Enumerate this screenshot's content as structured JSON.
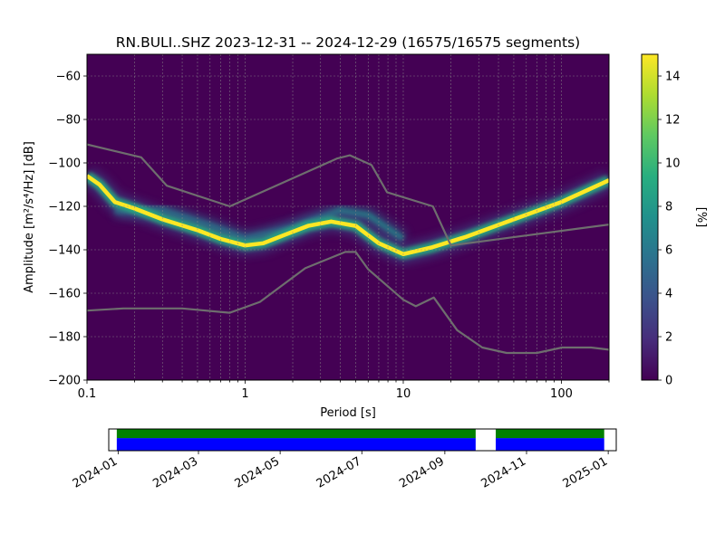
{
  "figure": {
    "title": "RN.BULI..SHZ   2023-12-31 -- 2024-12-29  (16575/16575 segments)"
  },
  "chart_data": [
    {
      "type": "heatmap",
      "title": "RN.BULI..SHZ   2023-12-31 -- 2024-12-29  (16575/16575 segments)",
      "xlabel": "Period [s]",
      "ylabel": "Amplitude [m²/s⁴/Hz] [dB]",
      "x_scale": "log",
      "xlim": [
        0.1,
        200
      ],
      "ylim": [
        -200,
        -50
      ],
      "x_ticks": [
        0.1,
        1,
        10,
        100
      ],
      "x_tick_labels": [
        "0.1",
        "1",
        "10",
        "100"
      ],
      "y_ticks": [
        -200,
        -180,
        -160,
        -140,
        -120,
        -100,
        -80,
        -60
      ],
      "grid": true,
      "colorbar": {
        "label": "[%]",
        "min": 0,
        "max": 15,
        "ticks": [
          0,
          2,
          4,
          6,
          8,
          10,
          12,
          14
        ],
        "colormap": "viridis"
      },
      "ridge": {
        "description": "most frequent PSD values (yellow ridge)",
        "period": [
          0.1,
          0.12,
          0.15,
          0.2,
          0.3,
          0.5,
          0.7,
          1.0,
          1.3,
          1.8,
          2.5,
          3.5,
          5,
          7,
          10,
          15,
          25,
          50,
          100,
          200
        ],
        "amplitude": [
          -106,
          -110,
          -118,
          -121,
          -126,
          -131,
          -135,
          -138,
          -137,
          -133,
          -129,
          -127,
          -129,
          -137,
          -142,
          -139,
          -134,
          -126,
          -118,
          -108
        ]
      },
      "secondary_band": {
        "description": "weaker secondary mode",
        "period": [
          0.15,
          0.3,
          0.6,
          1.0,
          2.0,
          4.0,
          6.0,
          10.0
        ],
        "amplitude": [
          -122,
          -122,
          -129,
          -135,
          -130,
          -122,
          -124,
          -135
        ]
      },
      "noise_models": [
        {
          "name": "high noise model",
          "period": [
            0.1,
            0.22,
            0.32,
            0.8,
            3.8,
            4.6,
            6.3,
            7.9,
            15.4,
            20,
            354.8
          ],
          "amplitude": [
            -91.5,
            -97.4,
            -110.5,
            -120,
            -98,
            -96.5,
            -101,
            -113.5,
            -120,
            -138,
            -126
          ]
        },
        {
          "name": "low noise model",
          "period": [
            0.1,
            0.17,
            0.4,
            0.8,
            1.24,
            2.4,
            4.3,
            5.0,
            6.0,
            10.0,
            12.0,
            15.6,
            21.9,
            31.6,
            45,
            70,
            101,
            154,
            200
          ],
          "amplitude": [
            -168,
            -167,
            -167,
            -169,
            -164,
            -148.5,
            -141,
            -141,
            -149,
            -163,
            -166,
            -162,
            -177,
            -185,
            -187.5,
            -187.5,
            -185,
            -185,
            -186
          ]
        }
      ]
    },
    {
      "type": "timeline",
      "xlabel": "",
      "x_tick_labels": [
        "2024-01",
        "2024-03",
        "2024-05",
        "2024-07",
        "2024-09",
        "2024-11",
        "2025-01"
      ],
      "x_ticks": [
        "2024-01-01",
        "2024-03-01",
        "2024-05-01",
        "2024-07-01",
        "2024-09-01",
        "2024-11-01",
        "2025-01-01"
      ],
      "xlim": [
        "2023-12-25",
        "2025-01-07"
      ],
      "data_available": [
        {
          "start": "2023-12-31",
          "end": "2024-09-24"
        },
        {
          "start": "2024-10-09",
          "end": "2024-12-29"
        }
      ],
      "colors": {
        "available": "#0000ff",
        "used": "#008000"
      }
    }
  ]
}
